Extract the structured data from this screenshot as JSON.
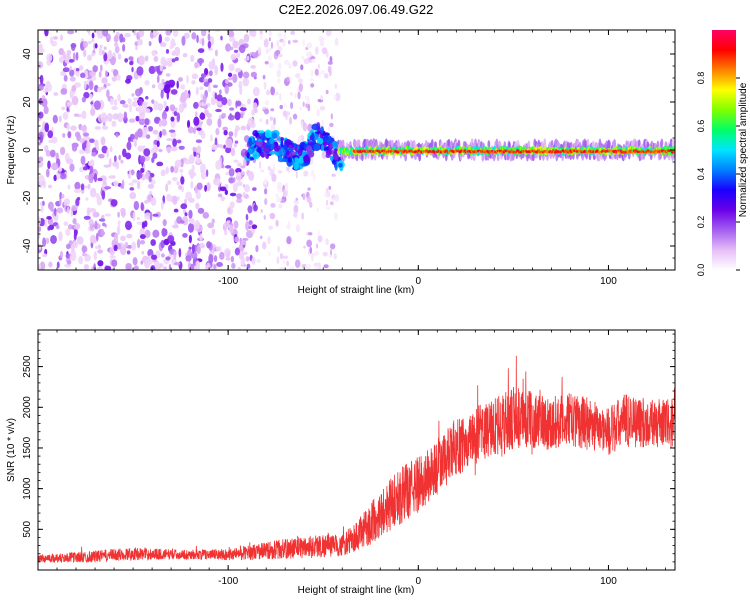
{
  "title": "C2E2.2026.097.06.49.G22",
  "chart_data": [
    {
      "type": "heatmap",
      "xlabel": "Height of straight line (km)",
      "ylabel": "Frequency (Hz)",
      "xlim": [
        -200,
        135
      ],
      "ylim": [
        -50,
        50
      ],
      "x_ticks": [
        -100,
        0,
        100
      ],
      "x_tick_labels": [
        "-100",
        "0",
        "100"
      ],
      "y_ticks": [
        -40,
        -20,
        0,
        20,
        40
      ],
      "y_tick_labels": [
        "-40",
        "-20",
        "0",
        "20",
        "40"
      ],
      "colorbar": {
        "label": "Normalized spectral amplitude",
        "range": [
          0,
          1
        ],
        "ticks": [
          0.0,
          0.2,
          0.4,
          0.6,
          0.8
        ],
        "tick_labels": [
          "0.0",
          "0.2",
          "0.4",
          "0.6",
          "0.8"
        ],
        "colormap": [
          "#ffffff",
          "#e6bdf7",
          "#a35ef0",
          "#6a00e8",
          "#1a00ff",
          "#0080ff",
          "#00e5ff",
          "#00ff66",
          "#7fff00",
          "#ffff00",
          "#ff8000",
          "#ff0000",
          "#ff0066"
        ]
      },
      "regions": [
        {
          "x": [
            -200,
            -85
          ],
          "freq": "full band -50 to 50",
          "amplitude": [
            0.05,
            0.25
          ],
          "texture": "dense noise"
        },
        {
          "x": [
            -85,
            -42
          ],
          "freq": "sparse, full band",
          "amplitude": [
            0.02,
            0.15
          ],
          "texture": "sparse noise"
        },
        {
          "x": [
            -90,
            -40
          ],
          "freq": "meandering line -8 to 12",
          "amplitude": [
            0.2,
            0.5
          ]
        },
        {
          "x": [
            -42,
            135
          ],
          "freq": "line near 0 Hz, width ~3 Hz",
          "amplitude": [
            0.5,
            0.95
          ]
        }
      ],
      "grid": false
    },
    {
      "type": "line",
      "xlabel": "Height of straight line (km)",
      "ylabel": "SNR (10 * v/v)",
      "xlim": [
        -200,
        135
      ],
      "ylim": [
        0,
        2950
      ],
      "x_ticks": [
        -100,
        0,
        100
      ],
      "x_tick_labels": [
        "-100",
        "0",
        "100"
      ],
      "y_ticks": [
        500,
        1000,
        1500,
        2000,
        2500
      ],
      "y_tick_labels": [
        "500",
        "1000",
        "1500",
        "2000",
        "2500"
      ],
      "color": "#f03232",
      "envelope": {
        "x": [
          -200,
          -175,
          -150,
          -125,
          -100,
          -75,
          -50,
          -40,
          -30,
          -20,
          -10,
          0,
          10,
          20,
          30,
          40,
          50,
          60,
          70,
          80,
          90,
          100,
          110,
          120,
          135
        ],
        "mean": [
          140,
          160,
          200,
          190,
          190,
          250,
          300,
          300,
          450,
          700,
          900,
          1050,
          1250,
          1500,
          1650,
          1750,
          1850,
          1850,
          1800,
          1850,
          1800,
          1700,
          1850,
          1800,
          1800
        ],
        "spread": [
          50,
          70,
          80,
          60,
          70,
          120,
          150,
          130,
          220,
          300,
          350,
          350,
          350,
          350,
          350,
          380,
          400,
          350,
          330,
          330,
          330,
          300,
          350,
          300,
          300
        ]
      },
      "grid": false
    }
  ]
}
